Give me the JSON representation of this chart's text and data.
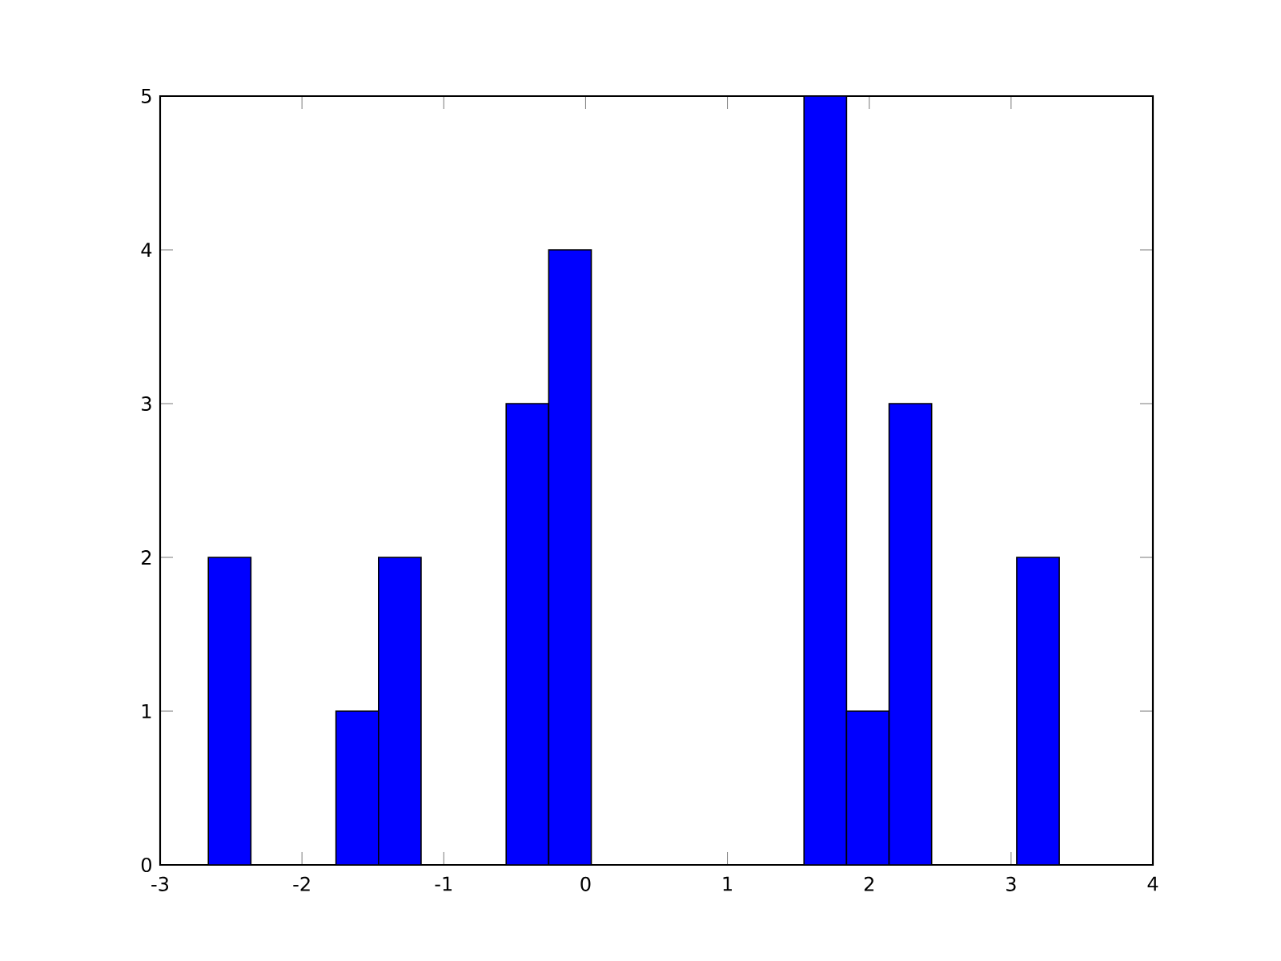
{
  "chart_data": {
    "type": "histogram",
    "bins": [
      -2.66,
      -2.36,
      -2.06,
      -1.76,
      -1.46,
      -1.16,
      -0.86,
      -0.56,
      -0.26,
      0.04,
      0.34,
      0.64,
      0.94,
      1.24,
      1.54,
      1.84,
      2.14,
      2.44,
      2.74,
      3.04,
      3.34
    ],
    "values": [
      2,
      0,
      0,
      1,
      2,
      0,
      0,
      3,
      4,
      0,
      0,
      0,
      0,
      0,
      5,
      1,
      3,
      0,
      0,
      2
    ],
    "color": "#0000ff",
    "xlim": [
      -3,
      4
    ],
    "ylim": [
      0,
      5
    ],
    "xticks": [
      -3,
      -2,
      -1,
      0,
      1,
      2,
      3,
      4
    ],
    "yticks": [
      0,
      1,
      2,
      3,
      4,
      5
    ]
  }
}
